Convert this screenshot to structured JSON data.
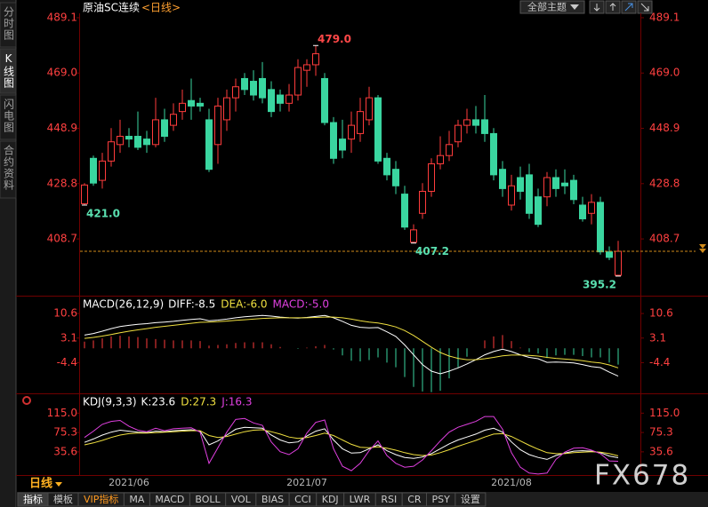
{
  "sidebar": {
    "tabs": [
      "分时图",
      "K线图",
      "闪电图",
      "合约资料"
    ]
  },
  "header": {
    "symbol": "原油SC连续",
    "period": "<日线>",
    "theme_button": "全部主题"
  },
  "chart_data": [
    {
      "type": "candlestick",
      "categories": [
        null,
        null,
        null,
        null,
        null,
        "2021/06",
        null,
        null,
        null,
        null,
        null,
        null,
        null,
        null,
        null,
        null,
        null,
        null,
        null,
        null,
        null,
        null,
        null,
        null,
        null,
        "2021/07",
        null,
        null,
        null,
        null,
        null,
        null,
        null,
        null,
        null,
        null,
        null,
        null,
        null,
        null,
        null,
        null,
        null,
        null,
        null,
        null,
        null,
        null,
        "2021/08",
        null,
        null,
        null,
        null,
        null,
        null,
        null,
        null,
        null,
        null,
        null,
        null
      ],
      "open": [
        421.5,
        438,
        430,
        437,
        443,
        446,
        446,
        445,
        443,
        452,
        450,
        455,
        459,
        458,
        452,
        443,
        452,
        460,
        467,
        466,
        467,
        463,
        461,
        458,
        461,
        470,
        472,
        467,
        451,
        445,
        445,
        447,
        452,
        460,
        438,
        434,
        425,
        407.5,
        418,
        426,
        436,
        439,
        444,
        450,
        452,
        452,
        447,
        434,
        421,
        431,
        432,
        424,
        424,
        431,
        429,
        430,
        421,
        418,
        422,
        404,
        395.5
      ],
      "high": [
        429,
        439,
        440,
        449,
        452,
        449,
        455,
        448,
        460,
        456,
        458,
        463,
        467,
        460,
        456,
        460,
        463,
        467,
        469,
        470,
        473,
        466,
        463,
        465,
        474,
        474,
        479,
        469,
        453,
        452,
        455,
        460,
        464,
        461,
        440,
        437,
        428,
        414,
        429,
        438,
        446,
        448,
        452,
        456,
        457,
        461,
        449,
        437,
        432,
        435,
        436,
        427,
        433,
        434,
        434,
        432,
        424,
        425,
        424,
        406,
        408
      ],
      "low": [
        421.0,
        428,
        427,
        435,
        440,
        442,
        441,
        440,
        442,
        444,
        448,
        452,
        452,
        455,
        433,
        436,
        448,
        455,
        461,
        459,
        458,
        453,
        455,
        455,
        459,
        464,
        468,
        450,
        436,
        438,
        440,
        444,
        450,
        436,
        430,
        425,
        412,
        407.2,
        416,
        424,
        434,
        437,
        442,
        447,
        447,
        444,
        430,
        424,
        419,
        423,
        416,
        413,
        420.6,
        424,
        425,
        421.3,
        415,
        414,
        403,
        401,
        395.2
      ],
      "close": [
        428.3,
        429,
        437,
        444,
        446,
        445,
        442,
        443,
        452,
        446,
        454,
        458,
        457,
        457,
        434,
        457,
        460,
        464,
        463,
        461,
        460,
        455,
        458,
        461,
        471,
        472,
        476,
        451,
        438,
        441,
        450,
        455,
        460,
        437,
        432,
        428,
        413,
        412,
        426,
        436,
        439,
        443,
        450,
        452,
        450,
        447,
        432,
        427,
        428,
        426,
        418,
        414,
        431,
        427,
        428,
        423,
        416,
        422,
        404,
        402,
        404.2
      ],
      "up_color": "#ff3c3c",
      "down_color": "#3ad6a0",
      "ylim": [
        388.4,
        490.7
      ],
      "yticks": [
        489.1,
        {
          "value": 469,
          "label": "469.0"
        },
        448.9,
        428.8,
        408.7
      ],
      "grid": false,
      "annotations": [
        {
          "value": 479.0,
          "label": "479.0"
        },
        {
          "value": 421.0,
          "label": "421.0"
        },
        {
          "value": 407.2,
          "label": "407.2"
        },
        {
          "value": 395.2,
          "label": "395.2"
        }
      ]
    },
    {
      "type": "macd",
      "title": "MACD(26,12,9)",
      "ylim": [
        -13.5,
        15.5
      ],
      "yticks": [
        10.6,
        3.1,
        -4.4
      ],
      "up_color": "#ff3c3c",
      "down_color": "#3ad6a0",
      "series": [
        {
          "name": "DIFF:-8.5",
          "color": "#ffffff",
          "values": [
            4.0,
            4.5,
            5.2,
            6.0,
            6.6,
            7.0,
            7.3,
            7.5,
            7.8,
            8.0,
            8.2,
            8.5,
            8.8,
            9.0,
            8.4,
            8.6,
            8.9,
            9.3,
            9.6,
            9.8,
            10.0,
            9.8,
            9.5,
            9.3,
            9.2,
            9.4,
            9.7,
            10.0,
            9.3,
            8.2,
            7.0,
            6.4,
            6.2,
            6.3,
            5.0,
            3.6,
            1.0,
            -2.0,
            -5.0,
            -7.0,
            -7.8,
            -7.0,
            -6.0,
            -4.8,
            -3.5,
            -2.0,
            -1.0,
            -0.3,
            -1.0,
            -2.0,
            -2.8,
            -3.2,
            -4.3,
            -4.2,
            -4.3,
            -4.5,
            -5.0,
            -5.6,
            -5.9,
            -7.3,
            -8.5
          ]
        },
        {
          "name": "DEA:-6.0",
          "color": "#f0e040",
          "values": [
            3.0,
            3.3,
            3.7,
            4.2,
            4.7,
            5.2,
            5.6,
            6.0,
            6.4,
            6.7,
            7.0,
            7.3,
            7.6,
            7.9,
            8.0,
            8.1,
            8.3,
            8.5,
            8.7,
            8.9,
            9.1,
            9.2,
            9.3,
            9.3,
            9.3,
            9.3,
            9.4,
            9.5,
            9.5,
            9.3,
            8.9,
            8.4,
            8.0,
            7.7,
            7.2,
            6.5,
            5.4,
            3.9,
            2.1,
            0.3,
            -1.3,
            -2.4,
            -3.1,
            -3.5,
            -3.5,
            -3.2,
            -2.8,
            -2.3,
            -2.1,
            -2.1,
            -2.2,
            -2.4,
            -2.8,
            -3.1,
            -3.3,
            -3.5,
            -3.8,
            -4.2,
            -4.5,
            -5.1,
            -6.0
          ]
        },
        {
          "name": "MACD:-5.0",
          "color": "#e040e0",
          "style": "bar",
          "values": [
            2.0,
            2.4,
            3.0,
            3.6,
            3.8,
            3.6,
            3.4,
            3.0,
            2.8,
            2.6,
            2.4,
            2.4,
            2.4,
            2.2,
            0.8,
            1.0,
            1.2,
            1.6,
            1.8,
            1.8,
            1.8,
            1.2,
            0.4,
            0.0,
            -0.2,
            0.2,
            0.6,
            1.0,
            -0.4,
            -2.2,
            -3.8,
            -4.0,
            -3.6,
            -2.8,
            -4.4,
            -5.8,
            -8.8,
            -11.8,
            -13.2,
            -13.4,
            -13.0,
            -9.2,
            -5.8,
            -2.6,
            0.0,
            2.4,
            3.6,
            4.0,
            2.2,
            0.2,
            -1.2,
            -1.6,
            -3.0,
            -2.2,
            -2.0,
            -2.0,
            -2.4,
            -2.8,
            -2.8,
            -4.4,
            -5.0
          ]
        }
      ]
    },
    {
      "type": "kdj",
      "title": "KDJ(9,3,3)",
      "ylim": [
        -12,
        152
      ],
      "yticks": [
        {
          "value": 115,
          "label": "115.0"
        },
        75.3,
        35.6
      ],
      "series": [
        {
          "name": "K:23.6",
          "color": "#ffffff",
          "values": [
            55,
            62,
            70,
            76,
            80,
            78,
            76,
            75,
            78,
            77,
            79,
            80,
            81,
            78,
            50,
            58,
            70,
            82,
            86,
            85,
            84,
            70,
            60,
            54,
            56,
            68,
            78,
            83,
            60,
            42,
            33,
            34,
            42,
            50,
            38,
            30,
            24,
            22,
            25,
            32,
            42,
            52,
            60,
            66,
            72,
            80,
            84,
            76,
            56,
            40,
            30,
            24,
            20,
            28,
            33,
            37,
            38,
            37,
            34,
            27,
            23.6
          ]
        },
        {
          "name": "D:27.3",
          "color": "#f0e040",
          "values": [
            50,
            54,
            59,
            65,
            70,
            73,
            74,
            74,
            75,
            76,
            77,
            78,
            79,
            79,
            69,
            65,
            67,
            72,
            77,
            80,
            81,
            77,
            72,
            66,
            63,
            65,
            69,
            74,
            69,
            60,
            51,
            45,
            44,
            46,
            43,
            39,
            34,
            30,
            28,
            29,
            34,
            40,
            47,
            53,
            59,
            66,
            72,
            73,
            67,
            58,
            49,
            41,
            34,
            32,
            32,
            34,
            35,
            36,
            35,
            32,
            27.3
          ]
        },
        {
          "name": "J:16.3",
          "color": "#e040e0",
          "values": [
            65,
            78,
            92,
            98,
            100,
            88,
            80,
            77,
            84,
            79,
            83,
            84,
            85,
            76,
            12,
            44,
            76,
            102,
            104,
            95,
            90,
            56,
            36,
            30,
            42,
            74,
            96,
            101,
            42,
            6,
            -3,
            12,
            38,
            58,
            28,
            12,
            4,
            6,
            19,
            38,
            58,
            76,
            86,
            92,
            98,
            108,
            108,
            82,
            34,
            4,
            -8,
            -10,
            -8,
            20,
            35,
            43,
            44,
            39,
            32,
            17,
            16.3
          ]
        }
      ]
    }
  ],
  "footer": {
    "period_select": "日线",
    "tabs": [
      "指标",
      "模板",
      "VIP指标",
      "MA",
      "MACD",
      "BOLL",
      "VOL",
      "BIAS",
      "CCI",
      "KDJ",
      "LWR",
      "RSI",
      "CR",
      "PSY",
      "设置"
    ]
  },
  "watermark": "FX678"
}
